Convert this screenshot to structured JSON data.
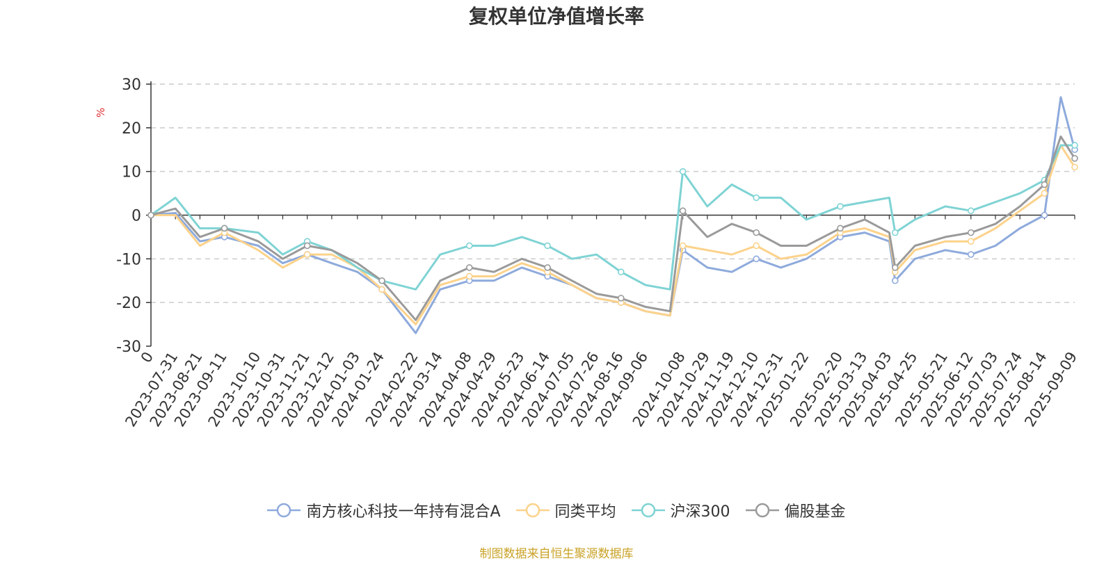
{
  "chart_data": {
    "type": "line",
    "title": "复权单位净值增长率",
    "ylabel": "%",
    "ylim": [
      -30,
      30
    ],
    "yticks": [
      30,
      20,
      10,
      0,
      -10,
      -20,
      -30
    ],
    "x_tick_labels": [
      "0",
      "2023-07-31",
      "2023-08-21",
      "2023-09-11",
      "2023-10-10",
      "2023-10-31",
      "2023-11-21",
      "2023-12-12",
      "2024-01-03",
      "2024-01-24",
      "2024-02-22",
      "2024-03-14",
      "2024-04-08",
      "2024-04-29",
      "2024-05-23",
      "2024-06-14",
      "2024-07-05",
      "2024-07-26",
      "2024-08-16",
      "2024-09-06",
      "2024-10-08",
      "2024-10-29",
      "2024-11-19",
      "2024-12-10",
      "2024-12-31",
      "2025-01-22",
      "2025-02-20",
      "2025-03-13",
      "2025-04-03",
      "2025-04-25",
      "2025-05-21",
      "2025-06-12",
      "2025-07-03",
      "2025-07-24",
      "2025-08-14",
      "2025-09-09"
    ],
    "grid": true,
    "legend_position": "bottom",
    "x": [
      "0",
      "2023-07-31",
      "2023-08-21",
      "2023-09-11",
      "2023-10-10",
      "2023-10-31",
      "2023-11-21",
      "2023-12-12",
      "2024-01-03",
      "2024-01-24",
      "2024-02-22",
      "2024-03-14",
      "2024-04-08",
      "2024-04-29",
      "2024-05-23",
      "2024-06-14",
      "2024-07-05",
      "2024-07-26",
      "2024-08-16",
      "2024-09-06",
      "2024-09-27",
      "2024-10-08",
      "2024-10-29",
      "2024-11-19",
      "2024-12-10",
      "2024-12-31",
      "2025-01-22",
      "2025-02-20",
      "2025-03-13",
      "2025-04-03",
      "2025-04-08",
      "2025-04-25",
      "2025-05-21",
      "2025-06-12",
      "2025-07-03",
      "2025-07-24",
      "2025-08-14",
      "2025-08-28",
      "2025-09-09"
    ],
    "series": [
      {
        "name": "南方核心科技一年持有混合A",
        "color": "#8eaadc",
        "values": [
          0,
          0.5,
          -6,
          -5,
          -7,
          -11,
          -9,
          -11,
          -13,
          -17,
          -27,
          -17,
          -15,
          -15,
          -12,
          -14,
          -16,
          -19,
          -20,
          -22,
          -23,
          -8,
          -12,
          -13,
          -10,
          -12,
          -10,
          -5,
          -4,
          -6,
          -15,
          -10,
          -8,
          -9,
          -7,
          -3,
          0,
          27,
          15
        ]
      },
      {
        "name": "同类平均",
        "color": "#fcd28b",
        "values": [
          0,
          0,
          -7,
          -4,
          -8,
          -12,
          -9,
          -9,
          -12,
          -17,
          -25,
          -16,
          -14,
          -14,
          -11,
          -13,
          -16,
          -19,
          -20,
          -22,
          -23,
          -7,
          -8,
          -9,
          -7,
          -10,
          -9,
          -4,
          -3,
          -5,
          -13,
          -8,
          -6,
          -6,
          -3,
          1,
          5,
          16,
          11
        ]
      },
      {
        "name": "沪深300",
        "color": "#7fd3d4",
        "values": [
          0,
          4,
          -3,
          -3,
          -4,
          -9,
          -6,
          -8,
          -12,
          -15,
          -17,
          -9,
          -7,
          -7,
          -5,
          -7,
          -10,
          -9,
          -13,
          -16,
          -17,
          10,
          2,
          7,
          4,
          4,
          -1,
          2,
          3,
          4,
          -4,
          -1,
          2,
          1,
          3,
          5,
          8,
          16,
          16
        ]
      },
      {
        "name": "偏股基金",
        "color": "#9a9a9a",
        "values": [
          0,
          1.5,
          -5,
          -3,
          -6,
          -10,
          -7,
          -8,
          -11,
          -15,
          -24,
          -15,
          -12,
          -13,
          -10,
          -12,
          -15,
          -18,
          -19,
          -21,
          -22,
          1,
          -5,
          -2,
          -4,
          -7,
          -7,
          -3,
          -1,
          -4,
          -12,
          -7,
          -5,
          -4,
          -2,
          2,
          7,
          18,
          13
        ]
      }
    ]
  },
  "legend": [
    {
      "label": "南方核心科技一年持有混合A",
      "color": "#8eaadc"
    },
    {
      "label": "同类平均",
      "color": "#fcd28b"
    },
    {
      "label": "沪深300",
      "color": "#7fd3d4"
    },
    {
      "label": "偏股基金",
      "color": "#9a9a9a"
    }
  ],
  "source": "制图数据来自恒生聚源数据库"
}
